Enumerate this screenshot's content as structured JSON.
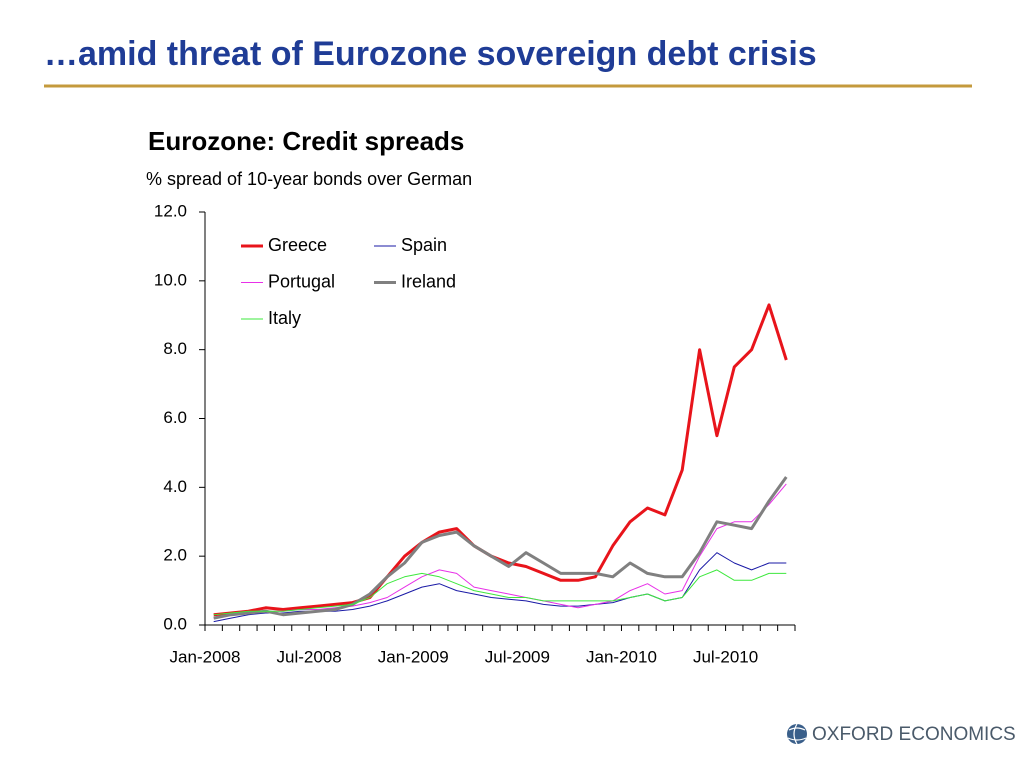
{
  "slide_title": "…amid threat of Eurozone sovereign debt crisis",
  "logo": "OXFORD ECONOMICS",
  "chart_data": {
    "type": "line",
    "title": "Eurozone: Credit spreads",
    "subtitle": "% spread of 10-year bonds over German",
    "categories": [
      "Jan-2008",
      null,
      null,
      null,
      null,
      null,
      "Jul-2008",
      null,
      null,
      null,
      null,
      null,
      "Jan-2009",
      null,
      null,
      null,
      null,
      null,
      "Jul-2009",
      null,
      null,
      null,
      null,
      null,
      "Jan-2010",
      null,
      null,
      null,
      null,
      null,
      "Jul-2010",
      null,
      null,
      null
    ],
    "series": [
      {
        "name": "Greece",
        "color": "#e8141b",
        "line_width": 3,
        "values": [
          0.3,
          0.35,
          0.4,
          0.5,
          0.45,
          0.5,
          0.55,
          0.6,
          0.65,
          0.8,
          1.4,
          2.0,
          2.4,
          2.7,
          2.8,
          2.3,
          2.0,
          1.8,
          1.7,
          1.5,
          1.3,
          1.3,
          1.4,
          2.3,
          3.0,
          3.4,
          3.2,
          4.5,
          8.0,
          5.5,
          7.5,
          8.0,
          9.3,
          7.7
        ]
      },
      {
        "name": "Spain",
        "color": "#1a1aa6",
        "line_width": 1,
        "values": [
          0.1,
          0.2,
          0.3,
          0.35,
          0.35,
          0.4,
          0.4,
          0.4,
          0.45,
          0.55,
          0.7,
          0.9,
          1.1,
          1.2,
          1.0,
          0.9,
          0.8,
          0.75,
          0.7,
          0.6,
          0.55,
          0.55,
          0.6,
          0.65,
          0.8,
          0.9,
          0.7,
          0.8,
          1.6,
          2.1,
          1.8,
          1.6,
          1.8,
          1.8
        ]
      },
      {
        "name": "Portugal",
        "color": "#e830e8",
        "line_width": 1,
        "values": [
          0.2,
          0.3,
          0.35,
          0.4,
          0.4,
          0.45,
          0.45,
          0.5,
          0.55,
          0.65,
          0.8,
          1.1,
          1.4,
          1.6,
          1.5,
          1.1,
          1.0,
          0.9,
          0.8,
          0.7,
          0.6,
          0.5,
          0.6,
          0.7,
          1.0,
          1.2,
          0.9,
          1.0,
          2.0,
          2.8,
          3.0,
          3.0,
          3.5,
          4.1
        ]
      },
      {
        "name": "Ireland",
        "color": "#808080",
        "line_width": 3,
        "values": [
          0.2,
          0.3,
          0.35,
          0.4,
          0.3,
          0.35,
          0.4,
          0.45,
          0.6,
          0.9,
          1.4,
          1.8,
          2.4,
          2.6,
          2.7,
          2.3,
          2.0,
          1.7,
          2.1,
          1.8,
          1.5,
          1.5,
          1.5,
          1.4,
          1.8,
          1.5,
          1.4,
          1.4,
          2.1,
          3.0,
          2.9,
          2.8,
          3.6,
          4.3
        ]
      },
      {
        "name": "Italy",
        "color": "#3ee83e",
        "line_width": 1,
        "values": [
          0.3,
          0.35,
          0.4,
          0.4,
          0.4,
          0.45,
          0.5,
          0.55,
          0.6,
          0.8,
          1.2,
          1.4,
          1.5,
          1.4,
          1.2,
          1.0,
          0.9,
          0.8,
          0.8,
          0.7,
          0.7,
          0.7,
          0.7,
          0.7,
          0.8,
          0.9,
          0.7,
          0.8,
          1.4,
          1.6,
          1.3,
          1.3,
          1.5,
          1.5
        ]
      }
    ],
    "ylim": [
      0,
      12
    ],
    "yticks": [
      {
        "value": 0,
        "label": "0.0"
      },
      {
        "value": 2,
        "label": "2.0"
      },
      {
        "value": 4,
        "label": "4.0"
      },
      {
        "value": 6,
        "label": "6.0"
      },
      {
        "value": 8,
        "label": "8.0"
      },
      {
        "value": 10,
        "label": "10.0"
      },
      {
        "value": 12,
        "label": "12.0"
      }
    ],
    "grid": false,
    "legend": "top-left"
  }
}
